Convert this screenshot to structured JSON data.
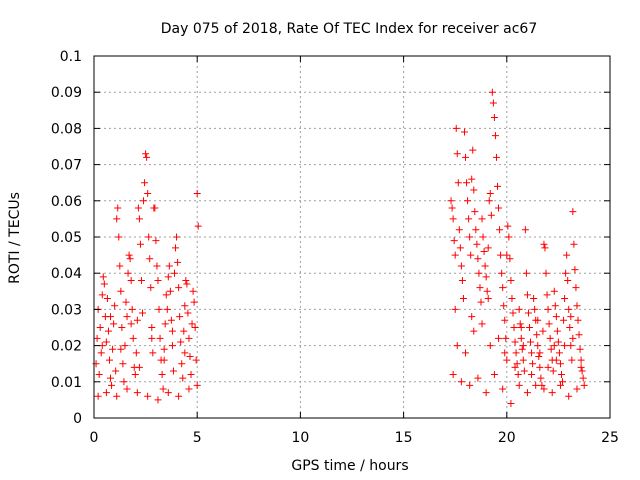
{
  "chart_data": {
    "type": "scatter",
    "title": "Day 075 of 2018, Rate Of TEC Index for receiver ac67",
    "xlabel": "GPS time / hours",
    "ylabel": "ROTI / TECUs",
    "xlim": [
      0,
      25
    ],
    "ylim": [
      0,
      0.1
    ],
    "x_ticks": [
      "0",
      "5",
      "10",
      "15",
      "20",
      "25"
    ],
    "y_ticks": [
      "0",
      "0.01",
      "0.02",
      "0.03",
      "0.04",
      "0.05",
      "0.06",
      "0.07",
      "0.08",
      "0.09",
      "0.1"
    ],
    "grid": true,
    "marker": "+",
    "marker_color": "#ff0000",
    "series": [
      {
        "name": "ROTI",
        "points": [
          [
            0.1,
            0.015
          ],
          [
            0.15,
            0.022
          ],
          [
            0.2,
            0.03
          ],
          [
            0.25,
            0.012
          ],
          [
            0.3,
            0.025
          ],
          [
            0.35,
            0.018
          ],
          [
            0.4,
            0.034
          ],
          [
            0.45,
            0.039
          ],
          [
            0.5,
            0.037
          ],
          [
            0.55,
            0.028
          ],
          [
            0.6,
            0.021
          ],
          [
            0.65,
            0.033
          ],
          [
            0.7,
            0.024
          ],
          [
            0.75,
            0.016
          ],
          [
            0.8,
            0.011
          ],
          [
            0.85,
            0.009
          ],
          [
            0.9,
            0.019
          ],
          [
            0.95,
            0.026
          ],
          [
            1.0,
            0.031
          ],
          [
            1.05,
            0.013
          ],
          [
            1.1,
            0.055
          ],
          [
            1.15,
            0.058
          ],
          [
            1.2,
            0.05
          ],
          [
            1.25,
            0.042
          ],
          [
            1.3,
            0.035
          ],
          [
            1.35,
            0.025
          ],
          [
            1.4,
            0.015
          ],
          [
            1.45,
            0.01
          ],
          [
            1.5,
            0.02
          ],
          [
            1.55,
            0.032
          ],
          [
            1.6,
            0.028
          ],
          [
            1.65,
            0.04
          ],
          [
            1.7,
            0.045
          ],
          [
            1.75,
            0.044
          ],
          [
            1.8,
            0.038
          ],
          [
            1.85,
            0.03
          ],
          [
            1.9,
            0.022
          ],
          [
            1.95,
            0.014
          ],
          [
            2.0,
            0.012
          ],
          [
            2.05,
            0.018
          ],
          [
            2.1,
            0.027
          ],
          [
            2.15,
            0.058
          ],
          [
            2.2,
            0.055
          ],
          [
            2.25,
            0.048
          ],
          [
            2.3,
            0.038
          ],
          [
            2.35,
            0.029
          ],
          [
            2.4,
            0.06
          ],
          [
            2.45,
            0.065
          ],
          [
            2.5,
            0.073
          ],
          [
            2.55,
            0.072
          ],
          [
            2.6,
            0.062
          ],
          [
            2.65,
            0.05
          ],
          [
            2.7,
            0.044
          ],
          [
            2.75,
            0.036
          ],
          [
            2.8,
            0.025
          ],
          [
            2.85,
            0.018
          ],
          [
            2.9,
            0.058
          ],
          [
            2.95,
            0.058
          ],
          [
            3.0,
            0.049
          ],
          [
            3.05,
            0.042
          ],
          [
            3.1,
            0.038
          ],
          [
            3.15,
            0.03
          ],
          [
            3.2,
            0.022
          ],
          [
            3.25,
            0.016
          ],
          [
            3.3,
            0.012
          ],
          [
            3.35,
            0.008
          ],
          [
            3.4,
            0.019
          ],
          [
            3.45,
            0.026
          ],
          [
            3.5,
            0.034
          ],
          [
            3.55,
            0.03
          ],
          [
            3.6,
            0.039
          ],
          [
            3.65,
            0.042
          ],
          [
            3.7,
            0.035
          ],
          [
            3.75,
            0.027
          ],
          [
            3.8,
            0.02
          ],
          [
            3.85,
            0.013
          ],
          [
            3.9,
            0.04
          ],
          [
            3.95,
            0.047
          ],
          [
            4.0,
            0.05
          ],
          [
            4.05,
            0.043
          ],
          [
            4.1,
            0.036
          ],
          [
            4.15,
            0.028
          ],
          [
            4.2,
            0.021
          ],
          [
            4.25,
            0.015
          ],
          [
            4.3,
            0.011
          ],
          [
            4.35,
            0.024
          ],
          [
            4.4,
            0.031
          ],
          [
            4.45,
            0.038
          ],
          [
            4.5,
            0.037
          ],
          [
            4.55,
            0.029
          ],
          [
            4.6,
            0.022
          ],
          [
            4.65,
            0.017
          ],
          [
            4.7,
            0.012
          ],
          [
            4.75,
            0.026
          ],
          [
            4.8,
            0.035
          ],
          [
            4.85,
            0.032
          ],
          [
            4.9,
            0.025
          ],
          [
            4.95,
            0.016
          ],
          [
            5.0,
            0.062
          ],
          [
            5.05,
            0.053
          ],
          [
            0.2,
            0.006
          ],
          [
            0.6,
            0.007
          ],
          [
            1.1,
            0.006
          ],
          [
            1.6,
            0.008
          ],
          [
            2.1,
            0.007
          ],
          [
            2.6,
            0.006
          ],
          [
            3.1,
            0.005
          ],
          [
            3.6,
            0.007
          ],
          [
            4.1,
            0.006
          ],
          [
            4.6,
            0.008
          ],
          [
            5.0,
            0.009
          ],
          [
            0.4,
            0.02
          ],
          [
            1.3,
            0.019
          ],
          [
            2.2,
            0.014
          ],
          [
            3.4,
            0.016
          ],
          [
            4.4,
            0.018
          ],
          [
            0.8,
            0.028
          ],
          [
            1.8,
            0.026
          ],
          [
            2.8,
            0.022
          ],
          [
            3.8,
            0.024
          ],
          [
            17.3,
            0.06
          ],
          [
            17.35,
            0.058
          ],
          [
            17.4,
            0.055
          ],
          [
            17.45,
            0.049
          ],
          [
            17.5,
            0.045
          ],
          [
            17.55,
            0.08
          ],
          [
            17.6,
            0.073
          ],
          [
            17.65,
            0.065
          ],
          [
            17.7,
            0.052
          ],
          [
            17.75,
            0.047
          ],
          [
            17.8,
            0.042
          ],
          [
            17.85,
            0.038
          ],
          [
            17.9,
            0.033
          ],
          [
            17.95,
            0.079
          ],
          [
            18.0,
            0.072
          ],
          [
            18.05,
            0.065
          ],
          [
            18.1,
            0.06
          ],
          [
            18.15,
            0.055
          ],
          [
            18.2,
            0.05
          ],
          [
            18.25,
            0.045
          ],
          [
            18.3,
            0.066
          ],
          [
            18.35,
            0.074
          ],
          [
            18.4,
            0.063
          ],
          [
            18.45,
            0.057
          ],
          [
            18.5,
            0.052
          ],
          [
            18.55,
            0.048
          ],
          [
            18.6,
            0.044
          ],
          [
            18.65,
            0.04
          ],
          [
            18.7,
            0.036
          ],
          [
            18.75,
            0.032
          ],
          [
            18.8,
            0.055
          ],
          [
            18.85,
            0.05
          ],
          [
            18.9,
            0.046
          ],
          [
            18.95,
            0.042
          ],
          [
            19.0,
            0.039
          ],
          [
            19.05,
            0.035
          ],
          [
            19.1,
            0.047
          ],
          [
            19.15,
            0.06
          ],
          [
            19.2,
            0.062
          ],
          [
            19.25,
            0.056
          ],
          [
            19.3,
            0.09
          ],
          [
            19.35,
            0.087
          ],
          [
            19.4,
            0.083
          ],
          [
            19.45,
            0.078
          ],
          [
            19.5,
            0.072
          ],
          [
            19.55,
            0.064
          ],
          [
            19.6,
            0.058
          ],
          [
            19.65,
            0.052
          ],
          [
            19.7,
            0.045
          ],
          [
            19.75,
            0.04
          ],
          [
            19.8,
            0.036
          ],
          [
            19.85,
            0.031
          ],
          [
            19.9,
            0.027
          ],
          [
            19.95,
            0.022
          ],
          [
            20.0,
            0.045
          ],
          [
            20.05,
            0.053
          ],
          [
            20.1,
            0.05
          ],
          [
            20.15,
            0.044
          ],
          [
            20.2,
            0.038
          ],
          [
            20.25,
            0.033
          ],
          [
            20.3,
            0.029
          ],
          [
            20.35,
            0.025
          ],
          [
            20.4,
            0.021
          ],
          [
            20.45,
            0.018
          ],
          [
            20.5,
            0.015
          ],
          [
            20.55,
            0.012
          ],
          [
            20.6,
            0.03
          ],
          [
            20.65,
            0.026
          ],
          [
            20.7,
            0.022
          ],
          [
            20.75,
            0.019
          ],
          [
            20.8,
            0.016
          ],
          [
            20.85,
            0.013
          ],
          [
            20.9,
            0.052
          ],
          [
            20.95,
            0.04
          ],
          [
            21.0,
            0.034
          ],
          [
            21.05,
            0.029
          ],
          [
            21.1,
            0.025
          ],
          [
            21.15,
            0.021
          ],
          [
            21.2,
            0.018
          ],
          [
            21.25,
            0.015
          ],
          [
            21.3,
            0.033
          ],
          [
            21.35,
            0.03
          ],
          [
            21.4,
            0.027
          ],
          [
            21.45,
            0.023
          ],
          [
            21.5,
            0.02
          ],
          [
            21.55,
            0.017
          ],
          [
            21.6,
            0.014
          ],
          [
            21.65,
            0.011
          ],
          [
            21.7,
            0.009
          ],
          [
            21.75,
            0.024
          ],
          [
            21.8,
            0.048
          ],
          [
            21.85,
            0.047
          ],
          [
            21.9,
            0.04
          ],
          [
            21.95,
            0.034
          ],
          [
            22.0,
            0.03
          ],
          [
            22.05,
            0.026
          ],
          [
            22.1,
            0.022
          ],
          [
            22.15,
            0.019
          ],
          [
            22.2,
            0.016
          ],
          [
            22.25,
            0.013
          ],
          [
            22.3,
            0.035
          ],
          [
            22.35,
            0.031
          ],
          [
            22.4,
            0.028
          ],
          [
            22.45,
            0.024
          ],
          [
            22.5,
            0.021
          ],
          [
            22.55,
            0.018
          ],
          [
            22.6,
            0.015
          ],
          [
            22.65,
            0.012
          ],
          [
            22.7,
            0.01
          ],
          [
            22.75,
            0.027
          ],
          [
            22.8,
            0.033
          ],
          [
            22.85,
            0.04
          ],
          [
            22.9,
            0.045
          ],
          [
            22.95,
            0.038
          ],
          [
            23.0,
            0.03
          ],
          [
            23.05,
            0.025
          ],
          [
            23.1,
            0.02
          ],
          [
            23.15,
            0.016
          ],
          [
            23.2,
            0.057
          ],
          [
            23.25,
            0.048
          ],
          [
            23.3,
            0.041
          ],
          [
            23.35,
            0.036
          ],
          [
            23.4,
            0.031
          ],
          [
            23.45,
            0.027
          ],
          [
            23.5,
            0.023
          ],
          [
            23.55,
            0.019
          ],
          [
            23.6,
            0.016
          ],
          [
            23.65,
            0.013
          ],
          [
            23.7,
            0.011
          ],
          [
            23.75,
            0.009
          ],
          [
            17.4,
            0.012
          ],
          [
            17.8,
            0.01
          ],
          [
            18.2,
            0.009
          ],
          [
            18.6,
            0.011
          ],
          [
            19.0,
            0.007
          ],
          [
            19.4,
            0.012
          ],
          [
            19.8,
            0.008
          ],
          [
            20.2,
            0.004
          ],
          [
            20.6,
            0.009
          ],
          [
            21.0,
            0.007
          ],
          [
            21.4,
            0.009
          ],
          [
            21.8,
            0.008
          ],
          [
            22.2,
            0.007
          ],
          [
            22.6,
            0.009
          ],
          [
            23.0,
            0.006
          ],
          [
            23.4,
            0.008
          ],
          [
            17.6,
            0.02
          ],
          [
            18.0,
            0.018
          ],
          [
            18.4,
            0.024
          ],
          [
            18.8,
            0.026
          ],
          [
            19.2,
            0.02
          ],
          [
            19.6,
            0.022
          ],
          [
            20.0,
            0.016
          ],
          [
            20.4,
            0.014
          ],
          [
            20.8,
            0.02
          ],
          [
            21.2,
            0.012
          ],
          [
            21.6,
            0.018
          ],
          [
            22.0,
            0.014
          ],
          [
            22.4,
            0.016
          ],
          [
            22.8,
            0.02
          ],
          [
            23.2,
            0.022
          ],
          [
            23.6,
            0.014
          ],
          [
            17.5,
            0.03
          ],
          [
            18.3,
            0.028
          ],
          [
            19.1,
            0.033
          ],
          [
            19.9,
            0.018
          ],
          [
            20.7,
            0.025
          ],
          [
            21.5,
            0.027
          ],
          [
            22.3,
            0.02
          ],
          [
            23.1,
            0.028
          ]
        ]
      }
    ]
  }
}
